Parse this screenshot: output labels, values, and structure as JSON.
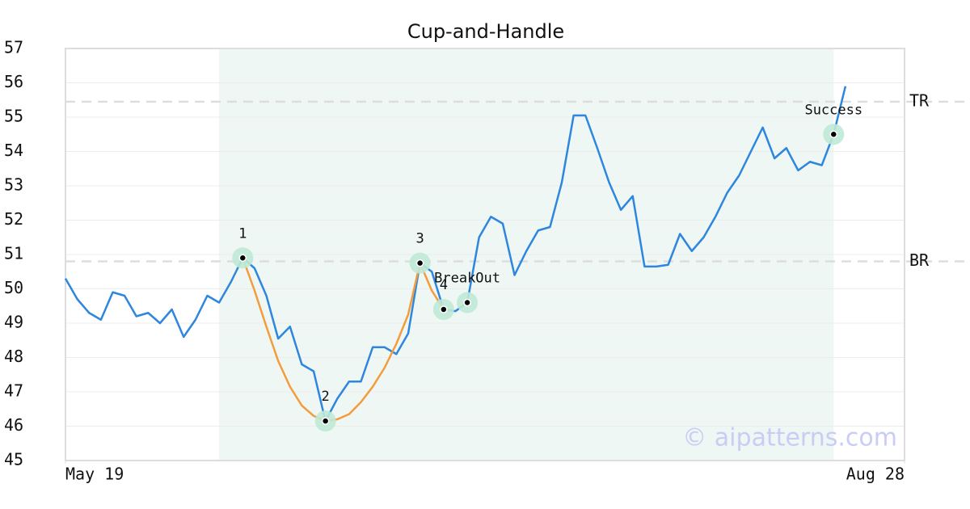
{
  "chart_data": {
    "type": "line",
    "title": "Cup-and-Handle",
    "x": [
      0,
      1,
      2,
      3,
      4,
      5,
      6,
      7,
      8,
      9,
      10,
      11,
      12,
      13,
      14,
      15,
      16,
      17,
      18,
      19,
      20,
      21,
      22,
      23,
      24,
      25,
      26,
      27,
      28,
      29,
      30,
      31,
      32,
      33,
      34,
      35,
      36,
      37,
      38,
      39,
      40,
      41,
      42,
      43,
      44,
      45,
      46,
      47,
      48,
      49,
      50,
      51,
      52,
      53,
      54,
      55,
      56,
      57,
      58,
      59,
      60,
      61,
      62,
      63,
      64,
      65,
      66
    ],
    "series": [
      {
        "color": "#2e86de",
        "values": [
          50.3,
          49.7,
          49.3,
          49.1,
          49.9,
          49.8,
          49.2,
          49.3,
          49.0,
          49.4,
          48.6,
          49.1,
          49.8,
          49.6,
          50.2,
          50.9,
          50.6,
          49.8,
          48.55,
          48.9,
          47.8,
          47.6,
          46.15,
          46.8,
          47.3,
          47.3,
          48.3,
          48.3,
          48.1,
          48.7,
          50.75,
          50.5,
          49.4,
          49.35,
          49.6,
          51.5,
          52.1,
          51.9,
          50.4,
          51.1,
          51.7,
          51.8,
          53.1,
          55.05,
          55.05,
          54.1,
          53.1,
          52.3,
          52.7,
          50.65,
          50.65,
          50.7,
          51.6,
          51.1,
          51.5,
          52.1,
          52.8,
          53.3,
          54.0,
          54.7,
          53.8,
          54.1,
          53.45,
          53.7,
          53.6,
          54.5,
          55.9
        ]
      },
      {
        "color": "#f39c3d",
        "x": [
          15,
          16,
          17,
          18,
          19,
          20,
          21,
          22,
          23,
          24,
          25,
          26,
          27,
          28,
          29,
          30,
          31,
          32
        ],
        "values": [
          50.9,
          49.95,
          48.9,
          47.9,
          47.15,
          46.6,
          46.3,
          46.15,
          46.2,
          46.35,
          46.7,
          47.15,
          47.7,
          48.4,
          49.25,
          50.75,
          49.95,
          49.4
        ]
      }
    ],
    "annotations": [
      {
        "label": "1",
        "x": 15,
        "y": 50.9
      },
      {
        "label": "2",
        "x": 22,
        "y": 46.15
      },
      {
        "label": "3",
        "x": 30,
        "y": 50.75
      },
      {
        "label": "4",
        "x": 32,
        "y": 49.4
      },
      {
        "label": "BreakOut",
        "x": 34,
        "y": 49.6
      },
      {
        "label": "Success",
        "x": 65,
        "y": 54.5
      }
    ],
    "levels": [
      {
        "label": "TR",
        "value": 55.45
      },
      {
        "label": "BR",
        "value": 50.8
      }
    ],
    "highlight": {
      "x": [
        13,
        65
      ],
      "color": "#eef7f3"
    },
    "watermark": "© aipatterns.com",
    "xlim": [
      0,
      71
    ],
    "xticks": [
      {
        "value": 0,
        "label": "May 19"
      },
      {
        "value": 71,
        "label": "Aug 28"
      }
    ],
    "ylim": [
      45,
      57
    ],
    "yticks": [
      45,
      46,
      47,
      48,
      49,
      50,
      51,
      52,
      53,
      54,
      55,
      56,
      57
    ],
    "grid": true
  }
}
